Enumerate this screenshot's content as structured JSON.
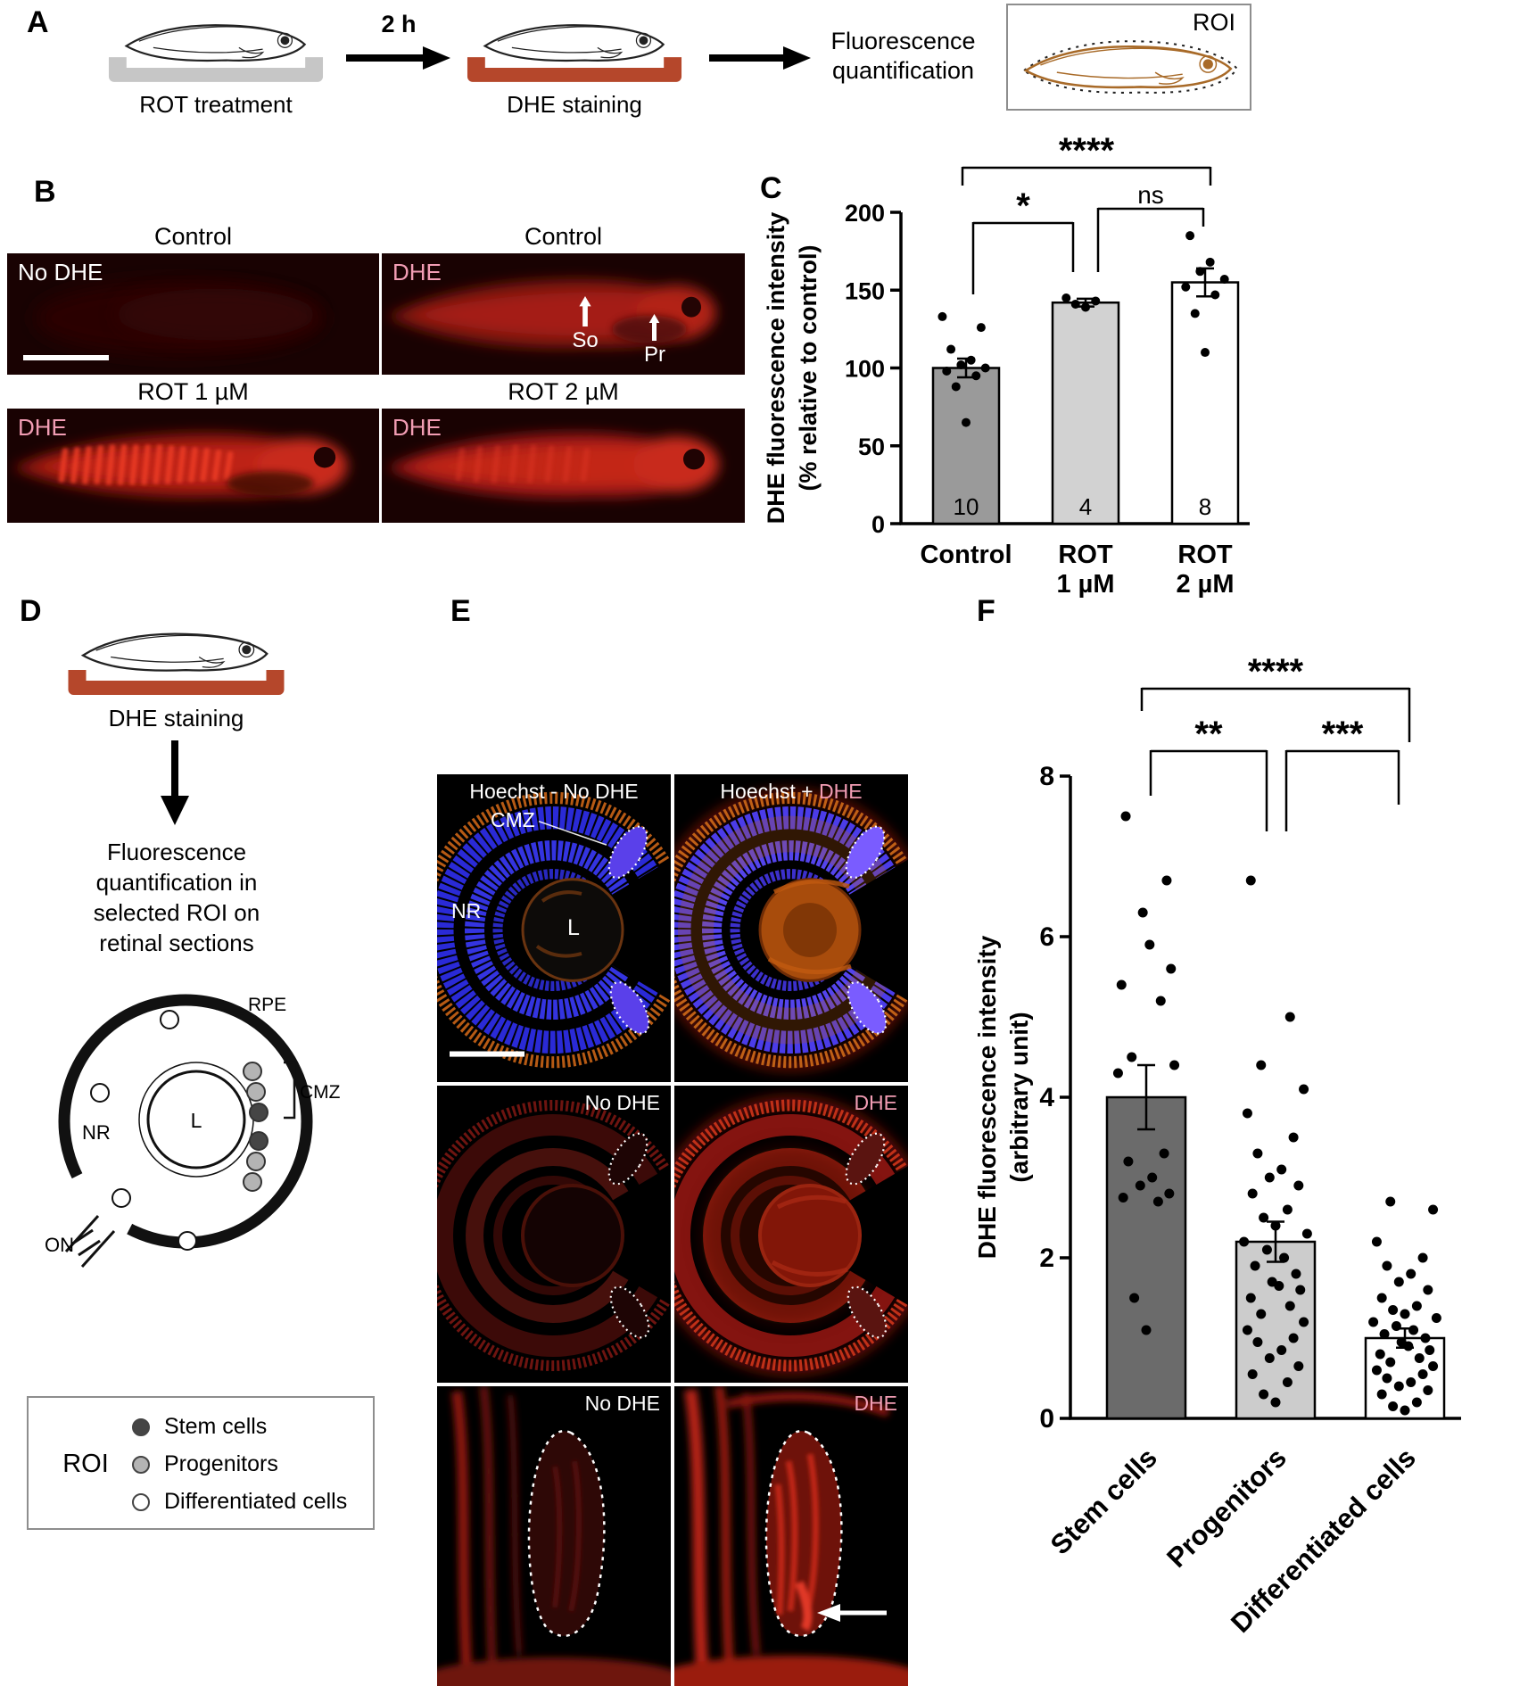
{
  "panels": {
    "A": {
      "label": "A",
      "time": "2 h",
      "step1_caption": "ROT treatment",
      "step2_caption": "DHE staining",
      "quant_line1": "Fluorescence",
      "quant_line2": "quantification",
      "roi_label": "ROI"
    },
    "B": {
      "label": "B",
      "img1_title": "Control",
      "img2_title": "Control",
      "img3_title": "ROT 1 µM",
      "img4_title": "ROT 2 µM",
      "img1_tag": "No DHE",
      "img2_tag": "DHE",
      "img3_tag": "DHE",
      "img4_tag": "DHE",
      "so": "So",
      "pr": "Pr"
    },
    "C": {
      "label": "C"
    },
    "D": {
      "label": "D",
      "staining_caption": "DHE staining",
      "quant_lines": [
        "Fluorescence",
        "quantification in",
        "selected ROI on",
        "retinal sections"
      ],
      "rpe": "RPE",
      "cmz": "CMZ",
      "nr": "NR",
      "lens": "L",
      "on": "ON",
      "roi_legend": {
        "title": "ROI",
        "items": [
          {
            "label": "Stem cells",
            "color": "#454545"
          },
          {
            "label": "Progenitors",
            "color": "#b4b4b4"
          },
          {
            "label": "Differentiated cells",
            "color": "#ffffff"
          }
        ]
      }
    },
    "E": {
      "label": "E",
      "row1_left_label": "Hoechst - No DHE",
      "row1_right_prefix": "Hoechst + ",
      "row1_right_dhe": "DHE",
      "cmz": "CMZ",
      "nr": "NR",
      "lens": "L",
      "row2_left_label": "No DHE",
      "row2_right_label": "DHE",
      "row3_left_label": "No DHE",
      "row3_right_label": "DHE"
    },
    "F": {
      "label": "F"
    }
  },
  "colors": {
    "dhe_pink": "#f29db4",
    "tray_red": "#b5472b",
    "tray_gray": "#c6c6c6"
  },
  "chart_data": [
    {
      "id": "C",
      "type": "bar",
      "categories": [
        "Control",
        "ROT\n1 µM",
        "ROT\n2 µM"
      ],
      "values": [
        100,
        142,
        155
      ],
      "errors": [
        6,
        2.5,
        9
      ],
      "n_labels": [
        "10",
        "4",
        "8"
      ],
      "bar_colors": [
        "#9a9a9a",
        "#d2d2d2",
        "#ffffff"
      ],
      "points": [
        [
          65,
          88,
          95,
          98,
          100,
          102,
          105,
          112,
          126,
          133
        ],
        [
          139,
          141,
          143,
          145
        ],
        [
          110,
          135,
          147,
          152,
          157,
          162,
          168,
          185
        ]
      ],
      "ylabel": "DHE fluorescence intensity\n(% relative to control)",
      "ylim": [
        0,
        200
      ],
      "yticks": [
        0,
        50,
        100,
        150,
        200
      ],
      "grid": false,
      "significance": [
        {
          "groups": [
            "Control",
            "ROT 1 µM"
          ],
          "label": "*"
        },
        {
          "groups": [
            "ROT 1 µM",
            "ROT 2 µM"
          ],
          "label": "ns"
        },
        {
          "groups": [
            "Control",
            "ROT 2 µM"
          ],
          "label": "****"
        }
      ]
    },
    {
      "id": "F",
      "type": "bar",
      "categories": [
        "Stem cells",
        "Progenitors",
        "Differentiated cells"
      ],
      "values": [
        4.0,
        2.2,
        1.0
      ],
      "errors": [
        0.4,
        0.25,
        0.12
      ],
      "bar_colors": [
        "#6b6b6b",
        "#cccccc",
        "#ffffff"
      ],
      "points": [
        [
          1.1,
          1.5,
          2.7,
          2.75,
          2.8,
          2.9,
          3.0,
          3.2,
          3.3,
          4.3,
          4.4,
          4.5,
          5.2,
          5.4,
          5.6,
          5.9,
          6.3,
          6.7,
          7.5
        ],
        [
          0.2,
          0.3,
          0.45,
          0.55,
          0.65,
          0.75,
          0.85,
          0.95,
          1.0,
          1.1,
          1.2,
          1.3,
          1.4,
          1.5,
          1.6,
          1.65,
          1.7,
          1.8,
          1.9,
          2.0,
          2.1,
          2.2,
          2.3,
          2.4,
          2.5,
          2.6,
          2.8,
          2.9,
          3.0,
          3.1,
          3.3,
          3.5,
          3.8,
          4.1,
          4.4,
          5.0,
          6.7
        ],
        [
          0.1,
          0.15,
          0.2,
          0.3,
          0.35,
          0.4,
          0.45,
          0.5,
          0.55,
          0.6,
          0.65,
          0.7,
          0.75,
          0.8,
          0.85,
          0.9,
          0.95,
          1.0,
          1.05,
          1.1,
          1.15,
          1.2,
          1.25,
          1.3,
          1.35,
          1.4,
          1.5,
          1.6,
          1.7,
          1.8,
          1.9,
          2.0,
          2.2,
          2.6,
          2.7
        ]
      ],
      "ylabel": "DHE fluorescence intensity\n(arbitrary unit)",
      "ylim": [
        0,
        8
      ],
      "yticks": [
        0,
        2,
        4,
        6,
        8
      ],
      "grid": false,
      "significance": [
        {
          "groups": [
            "Stem cells",
            "Progenitors"
          ],
          "label": "**"
        },
        {
          "groups": [
            "Progenitors",
            "Differentiated cells"
          ],
          "label": "***"
        },
        {
          "groups": [
            "Stem cells",
            "Differentiated cells"
          ],
          "label": "****"
        }
      ]
    }
  ]
}
